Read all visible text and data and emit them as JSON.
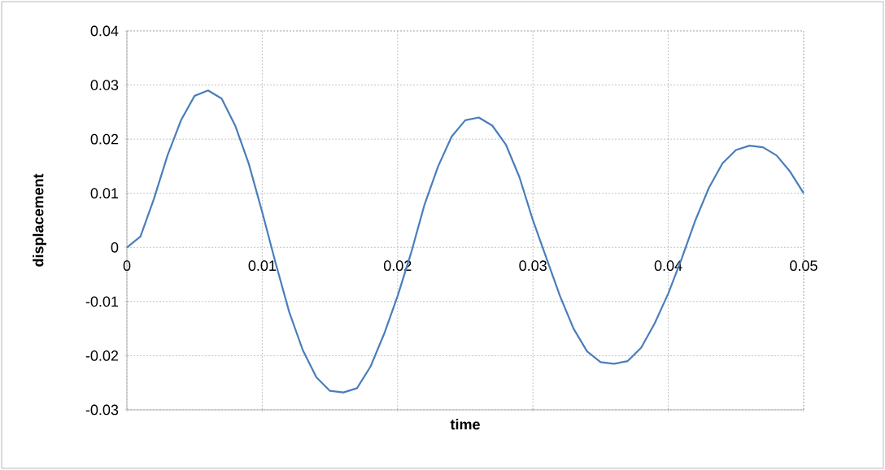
{
  "chart_data": {
    "type": "line",
    "xlabel": "time",
    "ylabel": "displacement",
    "x": [
      0,
      0.001,
      0.002,
      0.003,
      0.004,
      0.005,
      0.006,
      0.007,
      0.008,
      0.009,
      0.01,
      0.011,
      0.012,
      0.013,
      0.014,
      0.015,
      0.016,
      0.017,
      0.018,
      0.019,
      0.02,
      0.021,
      0.022,
      0.023,
      0.024,
      0.025,
      0.026,
      0.027,
      0.028,
      0.029,
      0.03,
      0.031,
      0.032,
      0.033,
      0.034,
      0.035,
      0.036,
      0.037,
      0.038,
      0.039,
      0.04,
      0.041,
      0.042,
      0.043,
      0.044,
      0.045,
      0.046,
      0.047,
      0.048,
      0.049,
      0.05
    ],
    "series": [
      {
        "color": "#4a7ebb",
        "values": [
          0,
          0.002,
          0.009,
          0.017,
          0.0235,
          0.028,
          0.029,
          0.0275,
          0.0225,
          0.0155,
          0.0065,
          -0.003,
          -0.012,
          -0.019,
          -0.024,
          -0.0265,
          -0.0268,
          -0.026,
          -0.022,
          -0.016,
          -0.009,
          -0.001,
          0.008,
          0.015,
          0.0205,
          0.0235,
          0.024,
          0.0225,
          0.019,
          0.013,
          0.005,
          -0.002,
          -0.009,
          -0.015,
          -0.0192,
          -0.0212,
          -0.0215,
          -0.021,
          -0.0185,
          -0.014,
          -0.0085,
          -0.002,
          0.005,
          0.011,
          0.0155,
          0.018,
          0.0188,
          0.0185,
          0.017,
          0.014,
          0.01
        ]
      }
    ],
    "xlim": [
      0,
      0.05
    ],
    "xticks": [
      0,
      0.01,
      0.02,
      0.03,
      0.04,
      0.05
    ],
    "ylim": [
      -0.03,
      0.04
    ],
    "yticks": [
      -0.03,
      -0.02,
      -0.01,
      0,
      0.01,
      0.02,
      0.03,
      0.04
    ],
    "grid": true,
    "marker": "none",
    "line_style": "solid"
  }
}
